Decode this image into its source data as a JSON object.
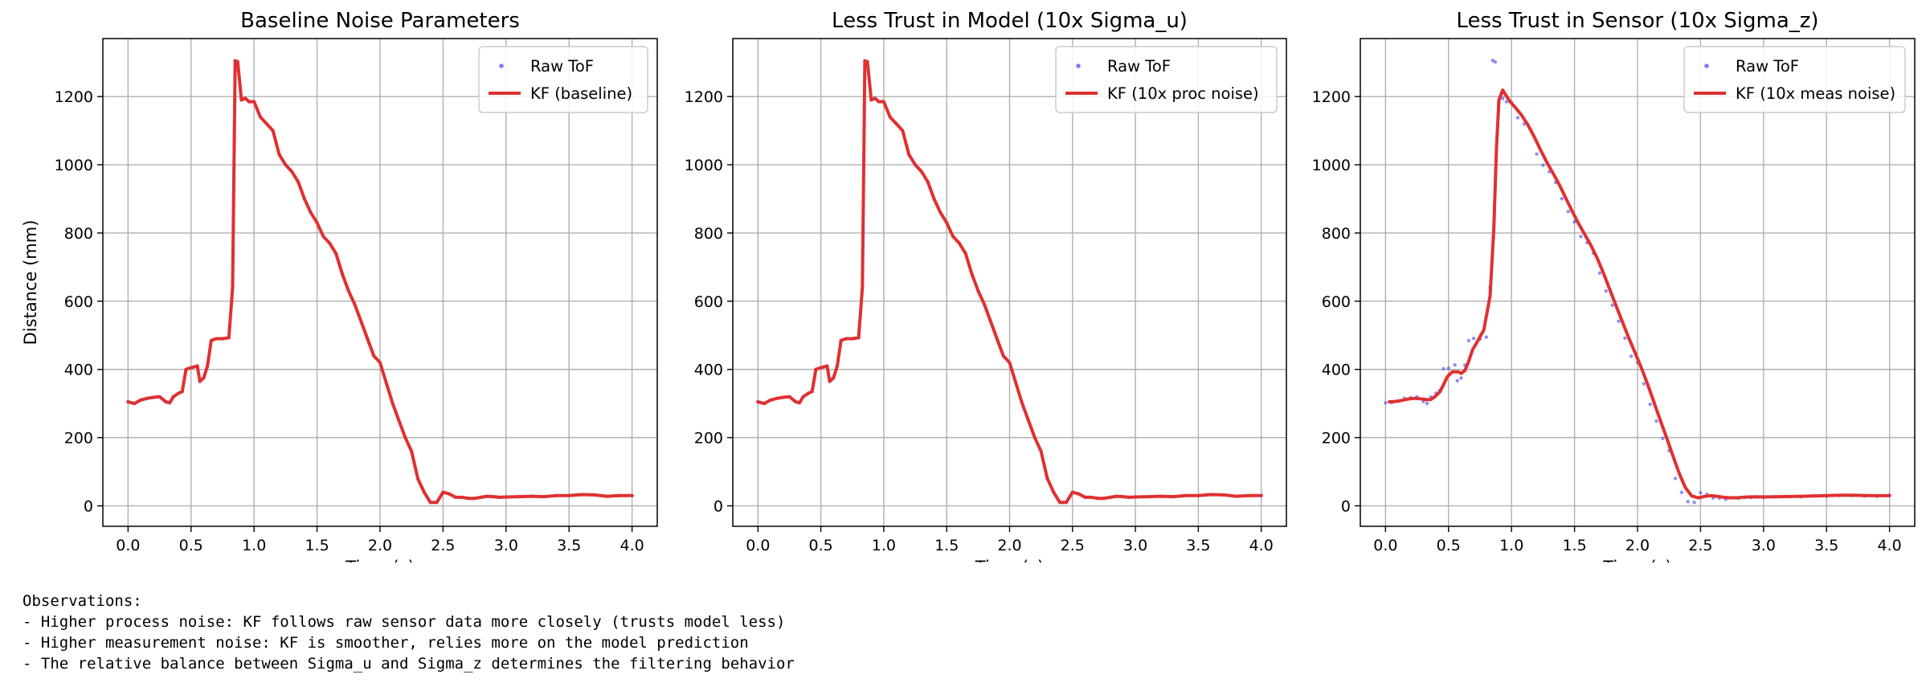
{
  "chart_data": [
    {
      "type": "line",
      "title": "Baseline Noise Parameters",
      "xlabel": "Time (s)",
      "ylabel": "Distance (mm)",
      "xlim": [
        -0.2,
        4.2
      ],
      "ylim": [
        -60,
        1370
      ],
      "xticks": [
        "0.0",
        "0.5",
        "1.0",
        "1.5",
        "2.0",
        "2.5",
        "3.0",
        "3.5",
        "4.0"
      ],
      "yticks": [
        "0",
        "200",
        "400",
        "600",
        "800",
        "1000",
        "1200"
      ],
      "grid": true,
      "legend": "top-right",
      "series": [
        {
          "name": "Raw ToF",
          "kind": "scatter",
          "color": "#4444ee"
        },
        {
          "name": "KF (baseline)",
          "kind": "line",
          "color": "#e03030"
        }
      ],
      "smoothing": 0
    },
    {
      "type": "line",
      "title": "Less Trust in Model (10x Sigma_u)",
      "xlabel": "Time (s)",
      "ylabel": "",
      "xlim": [
        -0.2,
        4.2
      ],
      "ylim": [
        -60,
        1370
      ],
      "xticks": [
        "0.0",
        "0.5",
        "1.0",
        "1.5",
        "2.0",
        "2.5",
        "3.0",
        "3.5",
        "4.0"
      ],
      "yticks": [
        "0",
        "200",
        "400",
        "600",
        "800",
        "1000",
        "1200"
      ],
      "grid": true,
      "legend": "top-right",
      "series": [
        {
          "name": "Raw ToF",
          "kind": "scatter",
          "color": "#4444ee"
        },
        {
          "name": "KF (10x proc noise)",
          "kind": "line",
          "color": "#e03030"
        }
      ],
      "smoothing": 0
    },
    {
      "type": "line",
      "title": "Less Trust in Sensor (10x Sigma_z)",
      "xlabel": "Time (s)",
      "ylabel": "",
      "xlim": [
        -0.2,
        4.2
      ],
      "ylim": [
        -60,
        1370
      ],
      "xticks": [
        "0.0",
        "0.5",
        "1.0",
        "1.5",
        "2.0",
        "2.5",
        "3.0",
        "3.5",
        "4.0"
      ],
      "yticks": [
        "0",
        "200",
        "400",
        "600",
        "800",
        "1000",
        "1200"
      ],
      "grid": true,
      "legend": "top-right",
      "series": [
        {
          "name": "Raw ToF",
          "kind": "scatter",
          "color": "#4444ee"
        },
        {
          "name": "KF (10x meas noise)",
          "kind": "line",
          "color": "#e03030"
        }
      ],
      "smoothing": 1
    }
  ],
  "raw_tof": {
    "x": [
      0.0,
      0.05,
      0.1,
      0.15,
      0.2,
      0.25,
      0.3,
      0.33,
      0.36,
      0.4,
      0.43,
      0.46,
      0.5,
      0.55,
      0.57,
      0.6,
      0.63,
      0.66,
      0.7,
      0.75,
      0.8,
      0.83,
      0.85,
      0.87,
      0.9,
      0.93,
      0.96,
      1.0,
      1.05,
      1.1,
      1.15,
      1.2,
      1.25,
      1.3,
      1.35,
      1.4,
      1.45,
      1.5,
      1.55,
      1.6,
      1.65,
      1.7,
      1.75,
      1.8,
      1.85,
      1.9,
      1.95,
      2.0,
      2.05,
      2.1,
      2.15,
      2.2,
      2.25,
      2.3,
      2.35,
      2.4,
      2.45,
      2.5,
      2.55,
      2.6,
      2.65,
      2.7,
      2.75,
      2.8,
      2.85,
      2.9,
      2.95,
      3.0,
      3.1,
      3.2,
      3.3,
      3.4,
      3.5,
      3.6,
      3.7,
      3.8,
      3.9,
      4.0
    ],
    "y": [
      305,
      300,
      310,
      315,
      318,
      320,
      305,
      302,
      320,
      330,
      335,
      400,
      405,
      410,
      365,
      375,
      410,
      485,
      490,
      490,
      493,
      640,
      1305,
      1302,
      1190,
      1195,
      1185,
      1185,
      1140,
      1120,
      1100,
      1030,
      1000,
      980,
      950,
      900,
      860,
      830,
      790,
      770,
      740,
      680,
      630,
      590,
      540,
      490,
      440,
      420,
      360,
      300,
      250,
      200,
      160,
      80,
      40,
      10,
      10,
      40,
      35,
      25,
      25,
      22,
      22,
      25,
      28,
      27,
      25,
      26,
      27,
      28,
      27,
      30,
      30,
      33,
      32,
      28,
      30,
      30
    ]
  },
  "observations": {
    "heading": "Observations:",
    "lines": [
      "- Higher process noise: KF follows raw sensor data more closely (trusts model less)",
      "- Higher measurement noise: KF is smoother, relies more on the model prediction",
      "- The relative balance between Sigma_u and Sigma_z determines the filtering behavior"
    ]
  }
}
